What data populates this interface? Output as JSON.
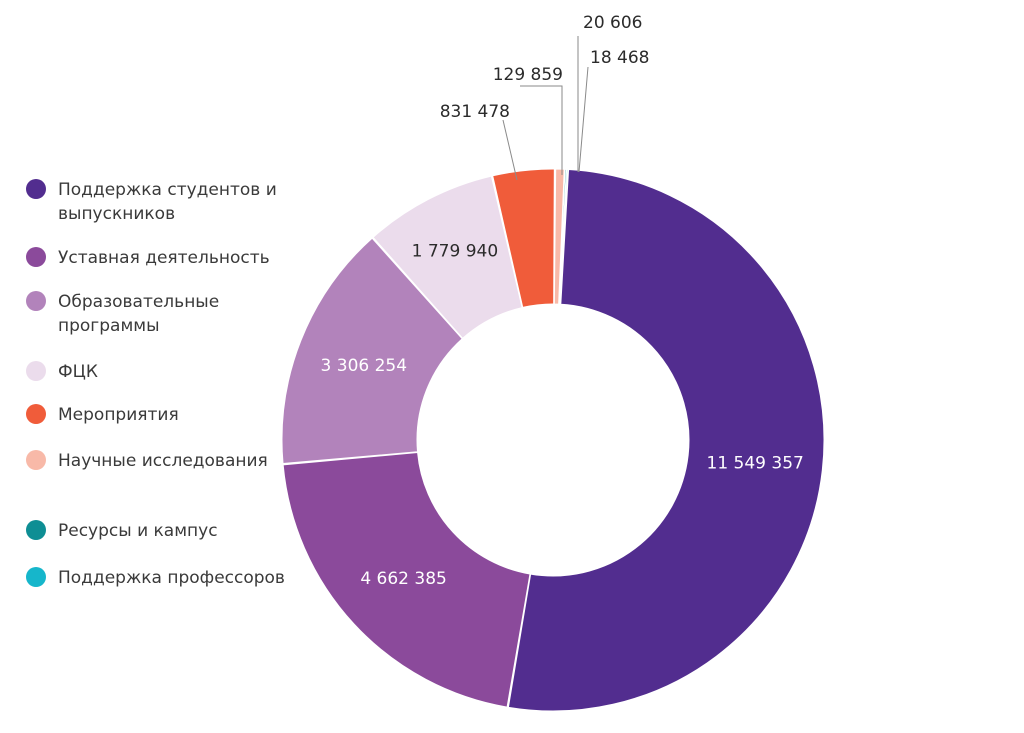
{
  "chart_data": {
    "type": "pie",
    "donut": true,
    "categories": [
      "Поддержка студентов и выпускников",
      "Уставная деятельность",
      "Образовательные программы",
      "ФЦК",
      "Мероприятия",
      "Научные исследования",
      "Ресурсы и кампус",
      "Поддержка профессоров"
    ],
    "values": [
      11549357,
      4662385,
      3306254,
      1779940,
      831478,
      129859,
      20606,
      18468
    ],
    "value_labels": [
      "11 549 357",
      "4 662 385",
      "3 306 254",
      "1 779 940",
      "831 478",
      "129 859",
      "20 606",
      "18 468"
    ],
    "colors": [
      "#522d8f",
      "#8b4a9b",
      "#b283bb",
      "#ebdcec",
      "#f05c3a",
      "#f8b9a8",
      "#0e8e94",
      "#16b6cb"
    ],
    "legend_position": "left",
    "title": ""
  }
}
